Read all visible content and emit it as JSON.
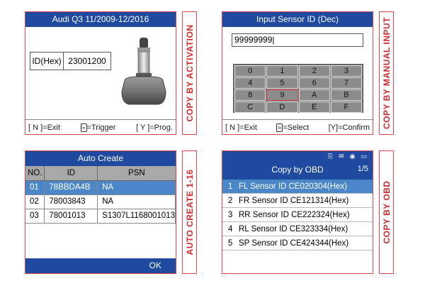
{
  "activation": {
    "title": "Audi Q3 11/2009-12/2016",
    "id_label": "ID(Hex)",
    "id_value": "23001200",
    "footer": [
      "[ N ]=Exit",
      "=Trigger",
      "[ Y ]=Prog."
    ],
    "side_label": "COPY BY ACTIVATION",
    "image": "tpms-sensor"
  },
  "manual": {
    "title": "Input Sensor ID (Dec)",
    "input_value": "99999999|",
    "keys": [
      "0",
      "1",
      "2",
      "3",
      "4",
      "5",
      "6",
      "7",
      "8",
      "9",
      "A",
      "B",
      "C",
      "D",
      "E",
      "F"
    ],
    "selected_key": "9",
    "footer": [
      "[ N ]=Exit",
      "=Select",
      "[Y]=Confirm"
    ],
    "side_label": "COPY BY MANUAL INPUT"
  },
  "auto": {
    "title": "Auto Create",
    "columns": [
      "NO.",
      "ID",
      "PSN"
    ],
    "rows": [
      [
        "01",
        "78BBDA4B",
        "NA"
      ],
      [
        "02",
        "78003843",
        "NA"
      ],
      [
        "03",
        "78001013",
        "S1307L1168001013"
      ]
    ],
    "selected_row": 0,
    "ok": "OK",
    "side_label": "AUTO CREATE 1-16"
  },
  "obd": {
    "status_icons": [
      "obd-icon",
      "mail-icon",
      "link-icon",
      "battery-icon"
    ],
    "title": "Copy by OBD",
    "page": "1/5",
    "items": [
      {
        "n": "1",
        "label": "FL Sensor ID CE020304(Hex)"
      },
      {
        "n": "2",
        "label": "FR Sensor ID CE121314(Hex)"
      },
      {
        "n": "3",
        "label": "RR Sensor ID CE222324(Hex)"
      },
      {
        "n": "4",
        "label": "RL Sensor ID CE323334(Hex)"
      },
      {
        "n": "5",
        "label": "SP Sensor ID CE424344(Hex)"
      }
    ],
    "selected": 0,
    "side_label": "COPY BY OBD"
  },
  "colors": {
    "header": "#1f4aa0",
    "selection": "#4a86c8",
    "frame": "#e0454e",
    "label": "#d02a2f"
  }
}
